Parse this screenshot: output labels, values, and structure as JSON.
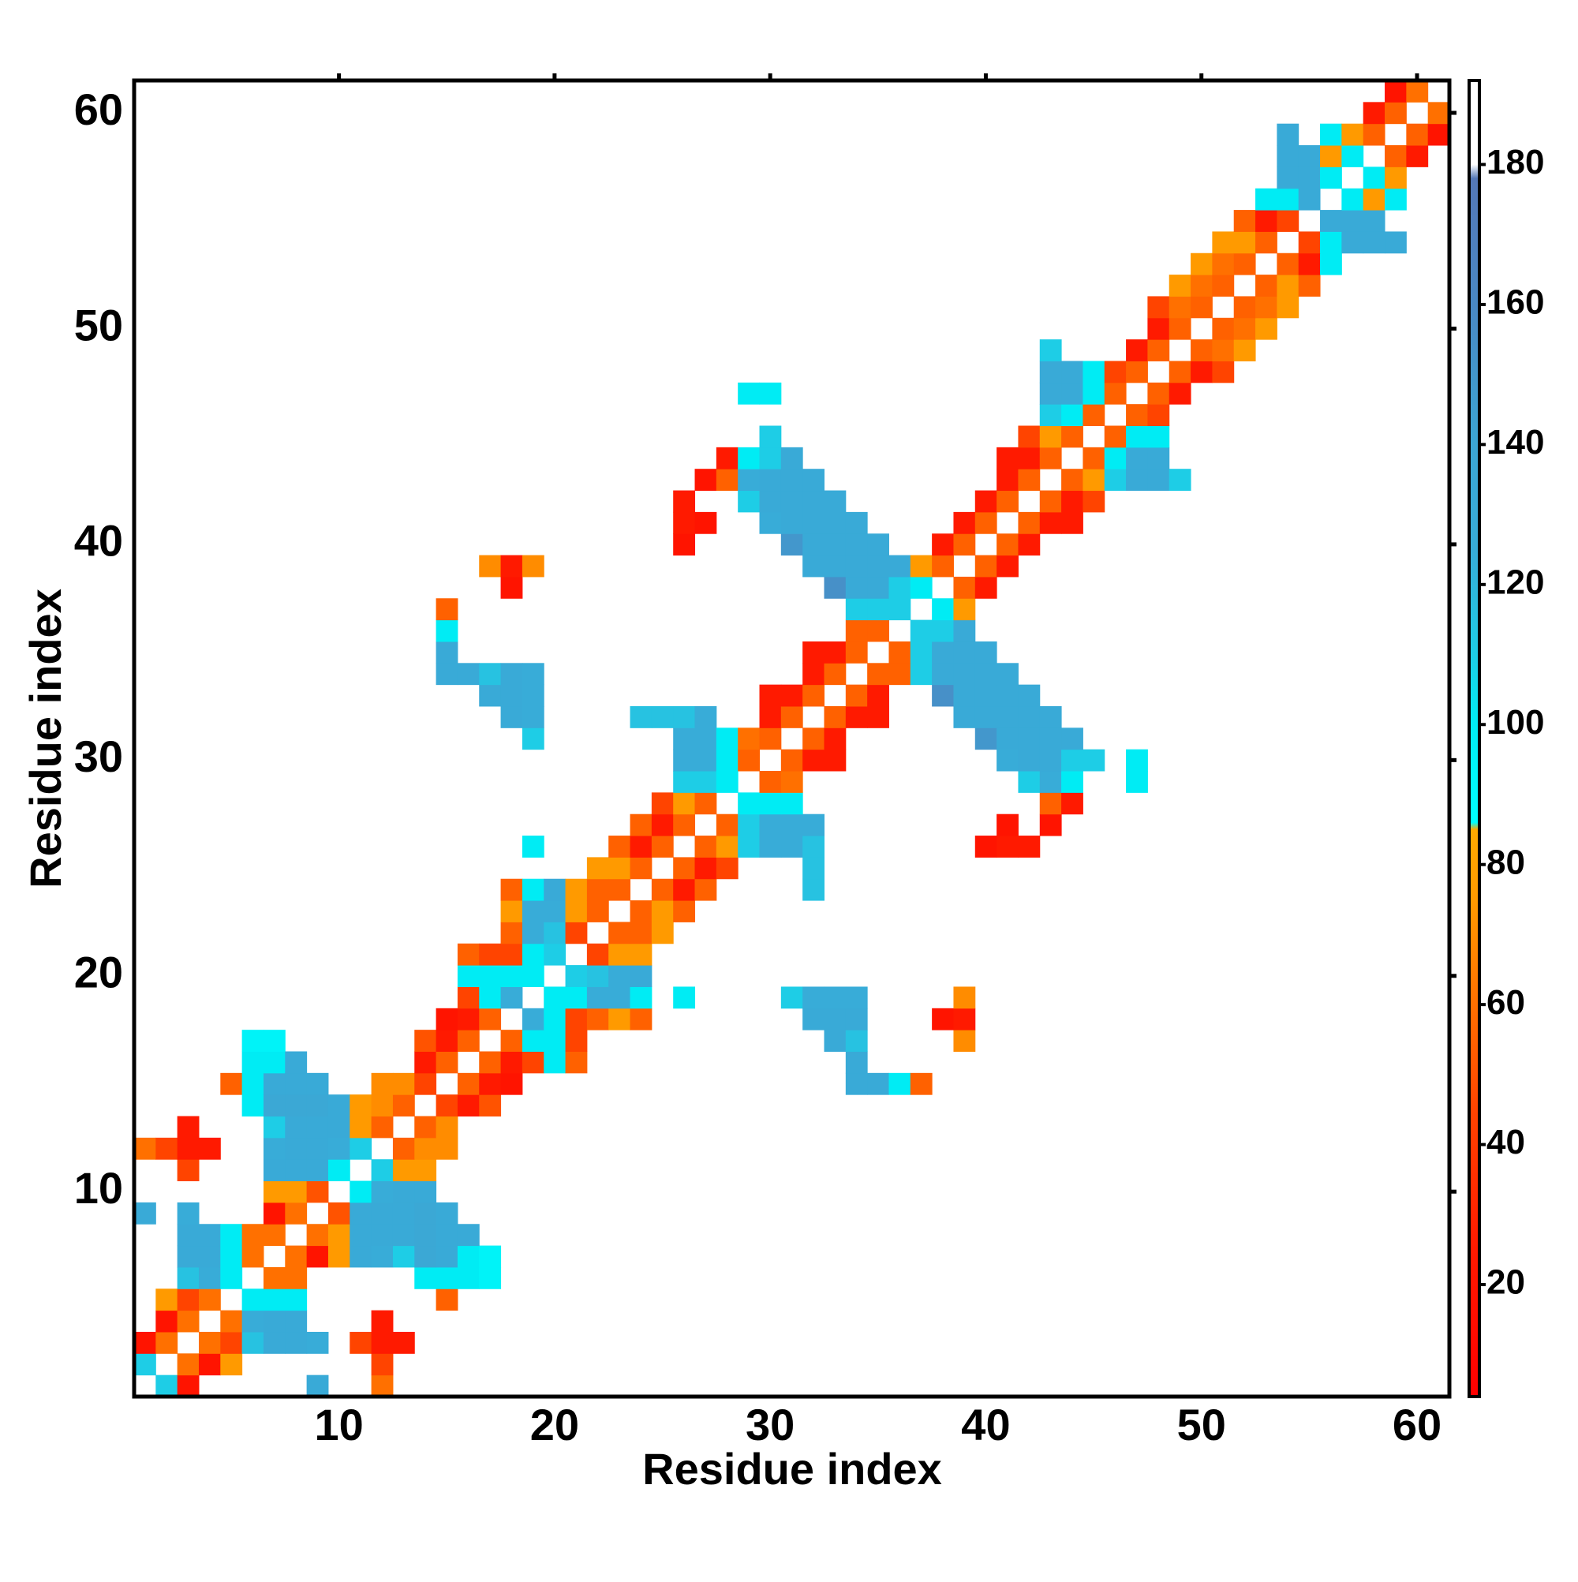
{
  "chart_data": {
    "type": "heatmap",
    "x_label": "Residue index",
    "y_label": "Residue index",
    "xlim": [
      0.5,
      61.5
    ],
    "ylim": [
      0.5,
      61.5
    ],
    "xticks": [
      10,
      20,
      30,
      40,
      50,
      60
    ],
    "yticks": [
      10,
      20,
      30,
      40,
      50,
      60
    ],
    "symmetric": true,
    "colorbar": {
      "lim": [
        4,
        192
      ],
      "ticks": [
        20,
        40,
        60,
        80,
        100,
        120,
        140,
        160,
        180
      ],
      "stops": [
        [
          4,
          "#ff0000"
        ],
        [
          25,
          "#ff1a00"
        ],
        [
          45,
          "#ff4400"
        ],
        [
          60,
          "#ff7000"
        ],
        [
          75,
          "#ff9a00"
        ],
        [
          85,
          "#ffaa00"
        ],
        [
          86,
          "#00ffff"
        ],
        [
          100,
          "#00ecf4"
        ],
        [
          110,
          "#1ecde6"
        ],
        [
          125,
          "#38acd8"
        ],
        [
          140,
          "#3ca6d4"
        ],
        [
          160,
          "#4a88c4"
        ],
        [
          178,
          "#5478b8"
        ],
        [
          180,
          "#ffffff"
        ],
        [
          192,
          "#ffffff"
        ]
      ]
    },
    "cells": [
      [
        2,
        1,
        110
      ],
      [
        3,
        1,
        20
      ],
      [
        9,
        1,
        130
      ],
      [
        12,
        1,
        60
      ],
      [
        3,
        2,
        60
      ],
      [
        4,
        2,
        20
      ],
      [
        5,
        2,
        75
      ],
      [
        12,
        2,
        45
      ],
      [
        4,
        3,
        60
      ],
      [
        5,
        3,
        45
      ],
      [
        6,
        3,
        115
      ],
      [
        7,
        3,
        130
      ],
      [
        8,
        3,
        130
      ],
      [
        9,
        3,
        125
      ],
      [
        11,
        3,
        45
      ],
      [
        12,
        3,
        25
      ],
      [
        13,
        3,
        25
      ],
      [
        5,
        4,
        60
      ],
      [
        6,
        4,
        125
      ],
      [
        7,
        4,
        130
      ],
      [
        8,
        4,
        130
      ],
      [
        12,
        4,
        25
      ],
      [
        6,
        5,
        100
      ],
      [
        7,
        5,
        100
      ],
      [
        8,
        5,
        100
      ],
      [
        15,
        5,
        55
      ],
      [
        7,
        6,
        60
      ],
      [
        8,
        6,
        60
      ],
      [
        14,
        6,
        100
      ],
      [
        15,
        6,
        100
      ],
      [
        16,
        6,
        100
      ],
      [
        17,
        6,
        95
      ],
      [
        8,
        7,
        60
      ],
      [
        9,
        7,
        20
      ],
      [
        10,
        7,
        75
      ],
      [
        11,
        7,
        130
      ],
      [
        12,
        7,
        125
      ],
      [
        13,
        7,
        110
      ],
      [
        14,
        7,
        135
      ],
      [
        15,
        7,
        130
      ],
      [
        16,
        7,
        100
      ],
      [
        17,
        7,
        95
      ],
      [
        9,
        8,
        60
      ],
      [
        10,
        8,
        75
      ],
      [
        11,
        8,
        130
      ],
      [
        12,
        8,
        130
      ],
      [
        13,
        8,
        130
      ],
      [
        14,
        8,
        135
      ],
      [
        15,
        8,
        130
      ],
      [
        16,
        8,
        130
      ],
      [
        10,
        9,
        50
      ],
      [
        11,
        9,
        130
      ],
      [
        12,
        9,
        130
      ],
      [
        13,
        9,
        130
      ],
      [
        14,
        9,
        135
      ],
      [
        15,
        9,
        130
      ],
      [
        11,
        10,
        100
      ],
      [
        12,
        10,
        125
      ],
      [
        13,
        10,
        130
      ],
      [
        14,
        10,
        130
      ],
      [
        12,
        11,
        110
      ],
      [
        13,
        11,
        75
      ],
      [
        14,
        11,
        75
      ],
      [
        13,
        12,
        55
      ],
      [
        14,
        12,
        70
      ],
      [
        15,
        12,
        70
      ],
      [
        14,
        13,
        55
      ],
      [
        15,
        13,
        70
      ],
      [
        15,
        14,
        45
      ],
      [
        16,
        14,
        25
      ],
      [
        17,
        14,
        50
      ],
      [
        16,
        15,
        55
      ],
      [
        17,
        15,
        25
      ],
      [
        18,
        15,
        20
      ],
      [
        34,
        15,
        130
      ],
      [
        35,
        15,
        130
      ],
      [
        36,
        15,
        100
      ],
      [
        37,
        15,
        55
      ],
      [
        17,
        16,
        55
      ],
      [
        18,
        16,
        25
      ],
      [
        19,
        16,
        45
      ],
      [
        20,
        16,
        100
      ],
      [
        21,
        16,
        55
      ],
      [
        34,
        16,
        130
      ],
      [
        18,
        17,
        55
      ],
      [
        19,
        17,
        100
      ],
      [
        20,
        17,
        100
      ],
      [
        21,
        17,
        45
      ],
      [
        33,
        17,
        130
      ],
      [
        34,
        17,
        115
      ],
      [
        39,
        17,
        70
      ],
      [
        19,
        18,
        125
      ],
      [
        20,
        18,
        100
      ],
      [
        21,
        18,
        45
      ],
      [
        22,
        18,
        55
      ],
      [
        23,
        18,
        75
      ],
      [
        24,
        18,
        55
      ],
      [
        32,
        18,
        130
      ],
      [
        33,
        18,
        130
      ],
      [
        34,
        18,
        130
      ],
      [
        38,
        18,
        20
      ],
      [
        39,
        18,
        25
      ],
      [
        20,
        19,
        100
      ],
      [
        21,
        19,
        100
      ],
      [
        22,
        19,
        125
      ],
      [
        23,
        19,
        125
      ],
      [
        24,
        19,
        100
      ],
      [
        26,
        19,
        100
      ],
      [
        31,
        19,
        110
      ],
      [
        32,
        19,
        125
      ],
      [
        33,
        19,
        125
      ],
      [
        34,
        19,
        125
      ],
      [
        39,
        19,
        70
      ],
      [
        21,
        20,
        110
      ],
      [
        22,
        20,
        115
      ],
      [
        23,
        20,
        125
      ],
      [
        24,
        20,
        130
      ],
      [
        22,
        21,
        45
      ],
      [
        23,
        21,
        75
      ],
      [
        24,
        21,
        75
      ],
      [
        23,
        22,
        55
      ],
      [
        24,
        22,
        55
      ],
      [
        25,
        22,
        75
      ],
      [
        24,
        23,
        55
      ],
      [
        25,
        23,
        75
      ],
      [
        26,
        23,
        55
      ],
      [
        25,
        24,
        55
      ],
      [
        26,
        24,
        25
      ],
      [
        27,
        24,
        55
      ],
      [
        32,
        24,
        115
      ],
      [
        26,
        25,
        55
      ],
      [
        27,
        25,
        25
      ],
      [
        28,
        25,
        45
      ],
      [
        32,
        25,
        115
      ],
      [
        27,
        26,
        55
      ],
      [
        28,
        26,
        75
      ],
      [
        29,
        26,
        110
      ],
      [
        30,
        26,
        125
      ],
      [
        31,
        26,
        125
      ],
      [
        32,
        26,
        115
      ],
      [
        40,
        26,
        20
      ],
      [
        41,
        26,
        25
      ],
      [
        42,
        26,
        25
      ],
      [
        28,
        27,
        55
      ],
      [
        29,
        27,
        110
      ],
      [
        30,
        27,
        125
      ],
      [
        31,
        27,
        125
      ],
      [
        32,
        27,
        125
      ],
      [
        41,
        27,
        20
      ],
      [
        43,
        27,
        20
      ],
      [
        29,
        28,
        100
      ],
      [
        30,
        28,
        100
      ],
      [
        31,
        28,
        100
      ],
      [
        43,
        28,
        55
      ],
      [
        44,
        28,
        25
      ],
      [
        30,
        29,
        55
      ],
      [
        31,
        29,
        60
      ],
      [
        42,
        29,
        110
      ],
      [
        43,
        29,
        125
      ],
      [
        44,
        29,
        100
      ],
      [
        47,
        29,
        100
      ],
      [
        31,
        30,
        55
      ],
      [
        32,
        30,
        25
      ],
      [
        33,
        30,
        25
      ],
      [
        41,
        30,
        125
      ],
      [
        42,
        30,
        130
      ],
      [
        43,
        30,
        130
      ],
      [
        44,
        30,
        110
      ],
      [
        45,
        30,
        110
      ],
      [
        47,
        30,
        100
      ],
      [
        32,
        31,
        55
      ],
      [
        33,
        31,
        25
      ],
      [
        40,
        31,
        150
      ],
      [
        41,
        31,
        130
      ],
      [
        42,
        31,
        130
      ],
      [
        43,
        31,
        130
      ],
      [
        44,
        31,
        130
      ],
      [
        33,
        32,
        55
      ],
      [
        34,
        32,
        25
      ],
      [
        35,
        32,
        25
      ],
      [
        39,
        32,
        130
      ],
      [
        40,
        32,
        130
      ],
      [
        41,
        32,
        130
      ],
      [
        42,
        32,
        130
      ],
      [
        43,
        32,
        130
      ],
      [
        34,
        33,
        55
      ],
      [
        35,
        33,
        25
      ],
      [
        38,
        33,
        155
      ],
      [
        39,
        33,
        130
      ],
      [
        40,
        33,
        130
      ],
      [
        41,
        33,
        130
      ],
      [
        42,
        33,
        130
      ],
      [
        35,
        34,
        55
      ],
      [
        36,
        34,
        55
      ],
      [
        37,
        34,
        110
      ],
      [
        38,
        34,
        130
      ],
      [
        39,
        34,
        130
      ],
      [
        40,
        34,
        130
      ],
      [
        41,
        34,
        130
      ],
      [
        36,
        35,
        55
      ],
      [
        37,
        35,
        110
      ],
      [
        38,
        35,
        130
      ],
      [
        39,
        35,
        130
      ],
      [
        40,
        35,
        130
      ],
      [
        37,
        36,
        110
      ],
      [
        38,
        36,
        110
      ],
      [
        39,
        36,
        130
      ],
      [
        38,
        37,
        100
      ],
      [
        39,
        37,
        75
      ],
      [
        39,
        38,
        55
      ],
      [
        40,
        38,
        25
      ],
      [
        40,
        39,
        55
      ],
      [
        41,
        39,
        25
      ],
      [
        41,
        40,
        55
      ],
      [
        42,
        40,
        25
      ],
      [
        42,
        41,
        55
      ],
      [
        43,
        41,
        25
      ],
      [
        44,
        41,
        25
      ],
      [
        43,
        42,
        55
      ],
      [
        44,
        42,
        25
      ],
      [
        45,
        42,
        45
      ],
      [
        44,
        43,
        55
      ],
      [
        45,
        43,
        75
      ],
      [
        46,
        43,
        110
      ],
      [
        47,
        43,
        130
      ],
      [
        48,
        43,
        130
      ],
      [
        49,
        43,
        110
      ],
      [
        45,
        44,
        55
      ],
      [
        46,
        44,
        100
      ],
      [
        47,
        44,
        130
      ],
      [
        48,
        44,
        130
      ],
      [
        46,
        45,
        55
      ],
      [
        47,
        45,
        100
      ],
      [
        48,
        45,
        100
      ],
      [
        47,
        46,
        55
      ],
      [
        48,
        46,
        45
      ],
      [
        48,
        47,
        55
      ],
      [
        49,
        47,
        25
      ],
      [
        49,
        48,
        55
      ],
      [
        50,
        48,
        25
      ],
      [
        51,
        48,
        45
      ],
      [
        50,
        49,
        55
      ],
      [
        51,
        49,
        60
      ],
      [
        52,
        49,
        75
      ],
      [
        51,
        50,
        55
      ],
      [
        52,
        50,
        60
      ],
      [
        53,
        50,
        75
      ],
      [
        52,
        51,
        55
      ],
      [
        53,
        51,
        60
      ],
      [
        54,
        51,
        75
      ],
      [
        53,
        52,
        55
      ],
      [
        54,
        52,
        75
      ],
      [
        55,
        52,
        55
      ],
      [
        54,
        53,
        55
      ],
      [
        55,
        53,
        25
      ],
      [
        56,
        53,
        100
      ],
      [
        55,
        54,
        45
      ],
      [
        56,
        54,
        100
      ],
      [
        57,
        54,
        130
      ],
      [
        58,
        54,
        130
      ],
      [
        59,
        54,
        130
      ],
      [
        56,
        55,
        130
      ],
      [
        57,
        55,
        130
      ],
      [
        58,
        55,
        130
      ],
      [
        57,
        56,
        100
      ],
      [
        58,
        56,
        75
      ],
      [
        59,
        56,
        100
      ],
      [
        58,
        57,
        100
      ],
      [
        59,
        57,
        75
      ],
      [
        59,
        58,
        55
      ],
      [
        60,
        58,
        25
      ],
      [
        60,
        59,
        55
      ],
      [
        61,
        59,
        20
      ],
      [
        61,
        60,
        60
      ]
    ]
  }
}
